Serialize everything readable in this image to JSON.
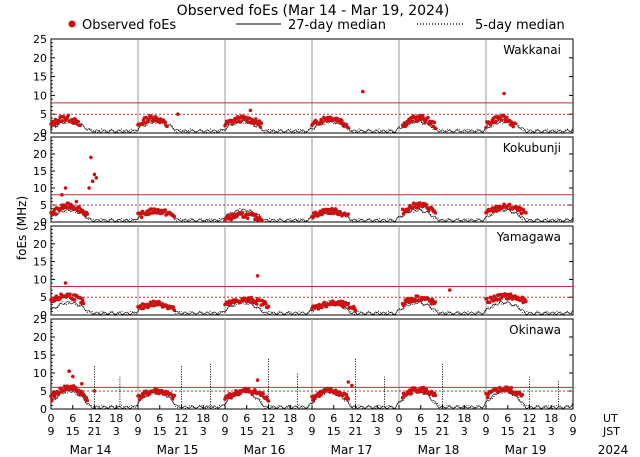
{
  "chart_data": {
    "type": "scatter",
    "title": "Observed foEs (Mar 14 - Mar 19, 2024)",
    "ylabel": "foEs (MHz)",
    "legend": {
      "observed": "Observed foEs",
      "median27": "27-day median",
      "median5": "5-day median",
      "placement": "top"
    },
    "colors": {
      "observed": "#cc1111",
      "median": "#000000",
      "guide": "#c03030",
      "frame": "#000000"
    },
    "ylim": [
      0,
      25
    ],
    "yticks": [
      "0",
      "5",
      "10",
      "15",
      "20",
      "25"
    ],
    "xlim_hours_ut": [
      0,
      144
    ],
    "x_tick_labels_ut": [
      "0",
      "6",
      "12",
      "18",
      "0",
      "6",
      "12",
      "18",
      "0",
      "6",
      "12",
      "18",
      "0",
      "6",
      "12",
      "18",
      "0",
      "6",
      "12",
      "18",
      "0",
      "6",
      "12",
      "18",
      "0"
    ],
    "x_tick_labels_jst": [
      "9",
      "15",
      "21",
      "3",
      "9",
      "15",
      "21",
      "3",
      "9",
      "15",
      "21",
      "3",
      "9",
      "15",
      "21",
      "3",
      "9",
      "15",
      "21",
      "3",
      "9",
      "15",
      "21",
      "3",
      "9"
    ],
    "x_row_labels": {
      "ut": "UT",
      "jst": "JST"
    },
    "day_labels": [
      "Mar 14",
      "Mar 15",
      "Mar 16",
      "Mar 17",
      "Mar 18",
      "Mar 19"
    ],
    "year_label": "2024",
    "panels": [
      {
        "station": "Wakkanai",
        "reference_lines_mhz": [
          5,
          8
        ],
        "observed_clusters": [
          {
            "start": 0,
            "end": 8,
            "peak": 3,
            "amp": 2.0
          },
          {
            "start": 24,
            "end": 32,
            "peak": 3,
            "amp": 2.0
          },
          {
            "start": 48,
            "end": 58,
            "peak": 3,
            "amp": 1.5
          },
          {
            "start": 72,
            "end": 82,
            "peak": 3,
            "amp": 2.0
          },
          {
            "start": 97,
            "end": 106,
            "peak": 3,
            "amp": 2.0
          },
          {
            "start": 120,
            "end": 128,
            "peak": 3,
            "amp": 2.0
          }
        ],
        "extra_points": [
          [
            86,
            11.0
          ],
          [
            125,
            10.5
          ],
          [
            55,
            6.0
          ],
          [
            35,
            5.0
          ]
        ],
        "median_range_mhz": [
          0.5,
          3
        ]
      },
      {
        "station": "Kokubunji",
        "reference_lines_mhz": [
          5,
          8
        ],
        "observed_clusters": [
          {
            "start": 0,
            "end": 10,
            "peak": 3.5,
            "amp": 2.5
          },
          {
            "start": 24,
            "end": 34,
            "peak": 2.5,
            "amp": 1.5
          },
          {
            "start": 48,
            "end": 58,
            "peak": 1.5,
            "amp": 1.0
          },
          {
            "start": 72,
            "end": 82,
            "peak": 2.5,
            "amp": 1.5
          },
          {
            "start": 97,
            "end": 106,
            "peak": 4.0,
            "amp": 2.0
          },
          {
            "start": 120,
            "end": 131,
            "peak": 3.5,
            "amp": 2.0
          }
        ],
        "extra_points": [
          [
            11,
            19.0
          ],
          [
            12,
            14.0
          ],
          [
            11.5,
            12.0
          ],
          [
            10.5,
            10.0
          ],
          [
            12.5,
            13.0
          ],
          [
            4,
            10.0
          ],
          [
            3,
            8.0
          ],
          [
            7,
            6.0
          ]
        ],
        "median_range_mhz": [
          0.5,
          3.5
        ]
      },
      {
        "station": "Yamagawa",
        "reference_lines_mhz": [
          5,
          8
        ],
        "observed_clusters": [
          {
            "start": 0,
            "end": 9,
            "peak": 4.5,
            "amp": 2.0
          },
          {
            "start": 24,
            "end": 34,
            "peak": 2.5,
            "amp": 1.5
          },
          {
            "start": 48,
            "end": 60,
            "peak": 3.5,
            "amp": 1.5
          },
          {
            "start": 72,
            "end": 84,
            "peak": 2.5,
            "amp": 1.5
          },
          {
            "start": 97,
            "end": 106,
            "peak": 4.0,
            "amp": 1.5
          },
          {
            "start": 120,
            "end": 131,
            "peak": 4.5,
            "amp": 1.5
          }
        ],
        "extra_points": [
          [
            57,
            11.0
          ],
          [
            4,
            9.0
          ],
          [
            110,
            7.0
          ]
        ],
        "median_range_mhz": [
          0.5,
          3.5
        ]
      },
      {
        "station": "Okinawa",
        "reference_lines_mhz": [
          5,
          6
        ],
        "observed_clusters": [
          {
            "start": 0,
            "end": 10,
            "peak": 4.5,
            "amp": 3.0
          },
          {
            "start": 24,
            "end": 34,
            "peak": 4.0,
            "amp": 2.0
          },
          {
            "start": 48,
            "end": 60,
            "peak": 4.0,
            "amp": 2.0
          },
          {
            "start": 72,
            "end": 82,
            "peak": 4.0,
            "amp": 2.0
          },
          {
            "start": 97,
            "end": 106,
            "peak": 4.5,
            "amp": 2.0
          },
          {
            "start": 120,
            "end": 130,
            "peak": 4.5,
            "amp": 2.0
          }
        ],
        "extra_points": [
          [
            5,
            10.5
          ],
          [
            6,
            9.0
          ],
          [
            8.5,
            7.0
          ],
          [
            12,
            5.0
          ],
          [
            82,
            7.5
          ],
          [
            83,
            6.5
          ],
          [
            57,
            8.0
          ]
        ],
        "median_range_mhz": [
          0.5,
          5
        ],
        "median_spikes": [
          [
            12,
            12
          ],
          [
            19,
            9
          ],
          [
            36,
            12
          ],
          [
            44,
            13
          ],
          [
            60,
            14
          ],
          [
            68,
            10
          ],
          [
            84,
            14
          ],
          [
            92,
            9
          ],
          [
            108,
            13
          ],
          [
            132,
            9
          ],
          [
            140,
            8
          ]
        ]
      }
    ]
  }
}
